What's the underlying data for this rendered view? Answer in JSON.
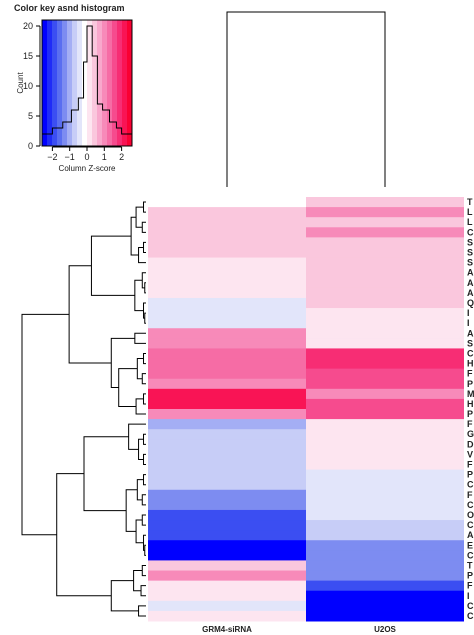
{
  "chart_data": {
    "type": "heatmap",
    "color_key": {
      "title": "Color key asnd histogram",
      "xlabel": "Column Z-score",
      "ylabel": "Count",
      "x_ticks": [
        -2,
        -1,
        0,
        1,
        2
      ],
      "x_tick_labels": [
        "−2",
        "−1",
        "0",
        "1",
        "2"
      ],
      "y_ticks": [
        0,
        5,
        10,
        15,
        20
      ],
      "xlim": [
        -2.6,
        2.6
      ],
      "ylim": [
        0,
        21
      ],
      "palette": [
        "#0000ff",
        "#1f2bf7",
        "#3b4ef2",
        "#5a6ef0",
        "#7d8cf1",
        "#a4aef4",
        "#c7cdf7",
        "#e2e5fa",
        "#ffffff",
        "#fde5f0",
        "#fac7dd",
        "#f8a8cc",
        "#f78ab9",
        "#f66ca5",
        "#f64b8e",
        "#f72d74",
        "#f91455",
        "#fa0033"
      ],
      "histogram": {
        "edges": [
          -2.6,
          -2.0,
          -1.4,
          -0.9,
          -0.5,
          -0.2,
          0.0,
          0.3,
          0.6,
          0.9,
          1.3,
          1.7,
          2.0,
          2.3,
          2.6
        ],
        "counts": [
          2,
          3,
          4,
          6,
          8,
          14,
          20,
          15,
          7,
          6,
          4,
          3,
          2,
          2
        ]
      }
    },
    "columns": [
      "GRM4-siRNA",
      "U2OS"
    ],
    "rows": [
      "T",
      "L",
      "L",
      "C",
      "S",
      "S",
      "S",
      "A",
      "A",
      "A",
      "Q",
      "I",
      "I",
      "A",
      "S",
      "C",
      "H",
      "F",
      "P",
      "M",
      "H",
      "P",
      "F",
      "G",
      "D",
      "V",
      "F",
      "P",
      "C",
      "F",
      "C",
      "O",
      "C",
      "A",
      "E",
      "C",
      "T",
      "P",
      "F",
      "I",
      "C",
      "C"
    ],
    "values": [
      [
        -0.1,
        0.5
      ],
      [
        0.3,
        0.9
      ],
      [
        0.3,
        0.5
      ],
      [
        0.3,
        0.9
      ],
      [
        0.3,
        0.5
      ],
      [
        0.3,
        0.5
      ],
      [
        0.0,
        0.5
      ],
      [
        0.0,
        0.3
      ],
      [
        0.0,
        0.3
      ],
      [
        0.0,
        0.3
      ],
      [
        -0.3,
        0.3
      ],
      [
        -0.3,
        0.0
      ],
      [
        -0.3,
        0.0
      ],
      [
        0.9,
        0.0
      ],
      [
        0.9,
        0.0
      ],
      [
        1.4,
        2.0
      ],
      [
        1.4,
        2.0
      ],
      [
        1.4,
        1.5
      ],
      [
        0.9,
        1.5
      ],
      [
        2.3,
        0.9
      ],
      [
        2.3,
        1.5
      ],
      [
        0.9,
        1.5
      ],
      [
        -0.9,
        0.0
      ],
      [
        -0.7,
        0.0
      ],
      [
        -0.7,
        0.0
      ],
      [
        -0.7,
        0.0
      ],
      [
        -0.7,
        0.0
      ],
      [
        -0.7,
        -0.3
      ],
      [
        -0.7,
        -0.3
      ],
      [
        -1.3,
        -0.3
      ],
      [
        -1.3,
        -0.3
      ],
      [
        -2.0,
        -0.3
      ],
      [
        -2.0,
        -0.7
      ],
      [
        -2.0,
        -0.7
      ],
      [
        -2.5,
        -1.3
      ],
      [
        -2.5,
        -1.3
      ],
      [
        0.3,
        -1.3
      ],
      [
        0.9,
        -1.3
      ],
      [
        0.0,
        -2.0
      ],
      [
        0.0,
        -2.5
      ],
      [
        -0.3,
        -2.5
      ],
      [
        0.0,
        -2.5
      ]
    ]
  }
}
